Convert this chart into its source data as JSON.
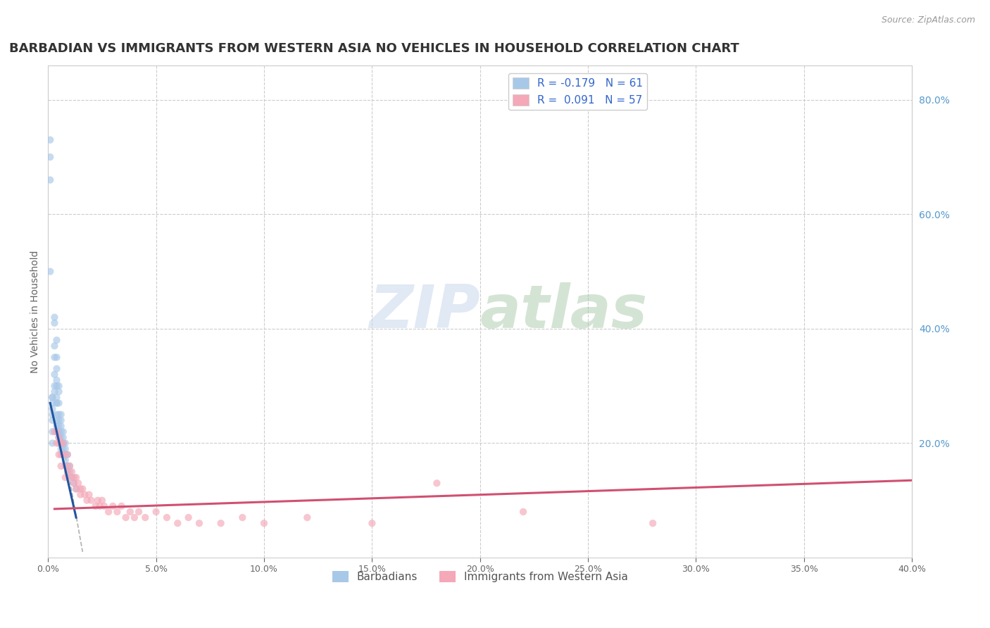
{
  "title": "BARBADIAN VS IMMIGRANTS FROM WESTERN ASIA NO VEHICLES IN HOUSEHOLD CORRELATION CHART",
  "source": "Source: ZipAtlas.com",
  "ylabel": "No Vehicles in Household",
  "watermark_zip": "ZIP",
  "watermark_atlas": "atlas",
  "background_color": "#ffffff",
  "grid_color": "#cccccc",
  "xlim": [
    0.0,
    0.4
  ],
  "ylim": [
    0.0,
    0.86
  ],
  "right_axis_color": "#5599cc",
  "title_fontsize": 13,
  "axis_label_fontsize": 10,
  "barbadian_scatter": {
    "x": [
      0.001,
      0.001,
      0.001,
      0.001,
      0.002,
      0.002,
      0.002,
      0.002,
      0.002,
      0.002,
      0.002,
      0.002,
      0.003,
      0.003,
      0.003,
      0.003,
      0.003,
      0.003,
      0.003,
      0.004,
      0.004,
      0.004,
      0.004,
      0.004,
      0.004,
      0.004,
      0.004,
      0.004,
      0.004,
      0.004,
      0.004,
      0.005,
      0.005,
      0.005,
      0.005,
      0.005,
      0.005,
      0.005,
      0.005,
      0.006,
      0.006,
      0.006,
      0.006,
      0.006,
      0.006,
      0.006,
      0.007,
      0.007,
      0.007,
      0.007,
      0.008,
      0.008,
      0.008,
      0.008,
      0.009,
      0.009,
      0.01,
      0.01,
      0.011,
      0.012,
      0.013
    ],
    "y": [
      0.73,
      0.7,
      0.66,
      0.5,
      0.28,
      0.28,
      0.27,
      0.26,
      0.25,
      0.24,
      0.22,
      0.2,
      0.42,
      0.41,
      0.37,
      0.35,
      0.32,
      0.3,
      0.29,
      0.38,
      0.35,
      0.33,
      0.31,
      0.3,
      0.28,
      0.27,
      0.27,
      0.25,
      0.24,
      0.23,
      0.22,
      0.3,
      0.29,
      0.27,
      0.25,
      0.24,
      0.23,
      0.22,
      0.21,
      0.25,
      0.24,
      0.23,
      0.22,
      0.21,
      0.2,
      0.19,
      0.22,
      0.21,
      0.2,
      0.19,
      0.2,
      0.19,
      0.18,
      0.17,
      0.18,
      0.16,
      0.16,
      0.15,
      0.14,
      0.13,
      0.12
    ],
    "color": "#a8c8e8",
    "alpha": 0.65,
    "size": 55
  },
  "western_asia_scatter": {
    "x": [
      0.003,
      0.004,
      0.004,
      0.005,
      0.005,
      0.005,
      0.006,
      0.006,
      0.006,
      0.007,
      0.007,
      0.008,
      0.008,
      0.009,
      0.009,
      0.01,
      0.01,
      0.011,
      0.012,
      0.012,
      0.013,
      0.013,
      0.014,
      0.015,
      0.015,
      0.016,
      0.017,
      0.018,
      0.019,
      0.02,
      0.022,
      0.023,
      0.024,
      0.025,
      0.026,
      0.028,
      0.03,
      0.032,
      0.034,
      0.036,
      0.038,
      0.04,
      0.042,
      0.045,
      0.05,
      0.055,
      0.06,
      0.065,
      0.07,
      0.08,
      0.09,
      0.1,
      0.12,
      0.15,
      0.18,
      0.22,
      0.28
    ],
    "y": [
      0.22,
      0.22,
      0.2,
      0.21,
      0.2,
      0.18,
      0.2,
      0.18,
      0.16,
      0.2,
      0.18,
      0.16,
      0.14,
      0.18,
      0.15,
      0.16,
      0.14,
      0.15,
      0.14,
      0.13,
      0.14,
      0.12,
      0.13,
      0.12,
      0.11,
      0.12,
      0.11,
      0.1,
      0.11,
      0.1,
      0.09,
      0.1,
      0.09,
      0.1,
      0.09,
      0.08,
      0.09,
      0.08,
      0.09,
      0.07,
      0.08,
      0.07,
      0.08,
      0.07,
      0.08,
      0.07,
      0.06,
      0.07,
      0.06,
      0.06,
      0.07,
      0.06,
      0.07,
      0.06,
      0.13,
      0.08,
      0.06
    ],
    "color": "#f4a8b8",
    "alpha": 0.65,
    "size": 55
  },
  "trendline_barbadian": {
    "x_start": 0.001,
    "x_end": 0.013,
    "y_start": 0.27,
    "y_end": 0.07,
    "color": "#2255a0",
    "linewidth": 2.2
  },
  "trendline_western_asia": {
    "x_start": 0.003,
    "x_end": 0.4,
    "y_start": 0.085,
    "y_end": 0.135,
    "color": "#d05070",
    "linewidth": 2.2
  },
  "trendline_dashed": {
    "x_start": 0.006,
    "x_end": 0.016,
    "y_start": 0.22,
    "y_end": 0.01,
    "color": "#b0b0b0",
    "linewidth": 1.2,
    "linestyle": "--"
  },
  "legend_upper": {
    "entries": [
      {
        "label": "R = -0.179   N = 61",
        "color": "#a8c8e8"
      },
      {
        "label": "R =  0.091   N = 57",
        "color": "#f4a8b8"
      }
    ],
    "text_color": "#3366cc"
  },
  "legend_lower": [
    {
      "label": "Barbadians",
      "color": "#a8c8e8"
    },
    {
      "label": "Immigrants from Western Asia",
      "color": "#f4a8b8"
    }
  ]
}
